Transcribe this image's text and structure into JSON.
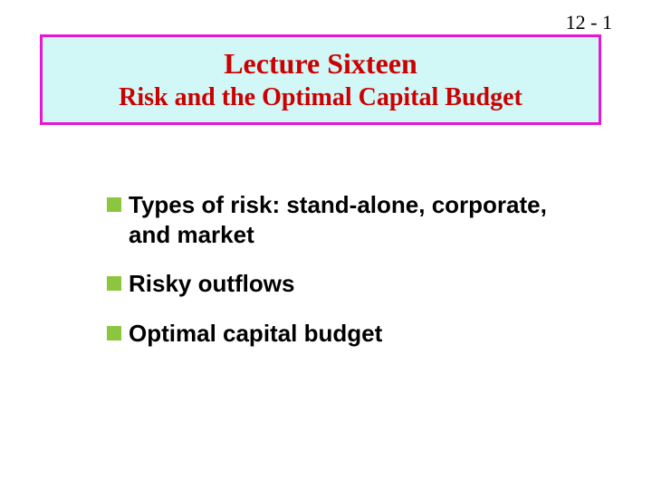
{
  "page_number": "12 - 1",
  "title_box": {
    "line1": "Lecture Sixteen",
    "line2": "Risk and the Optimal Capital Budget",
    "border_color": "#e815d5",
    "background_color": "#d1f7f7",
    "text_color": "#cc0000",
    "line1_fontsize": 32,
    "line2_fontsize": 28
  },
  "bullets": {
    "marker_color": "#8cc63f",
    "marker_size": 16,
    "text_color": "#000000",
    "text_fontsize": 26,
    "items": [
      "Types of risk:  stand-alone, corporate, and market",
      "Risky outflows",
      "Optimal capital budget"
    ]
  },
  "background_color": "#ffffff"
}
